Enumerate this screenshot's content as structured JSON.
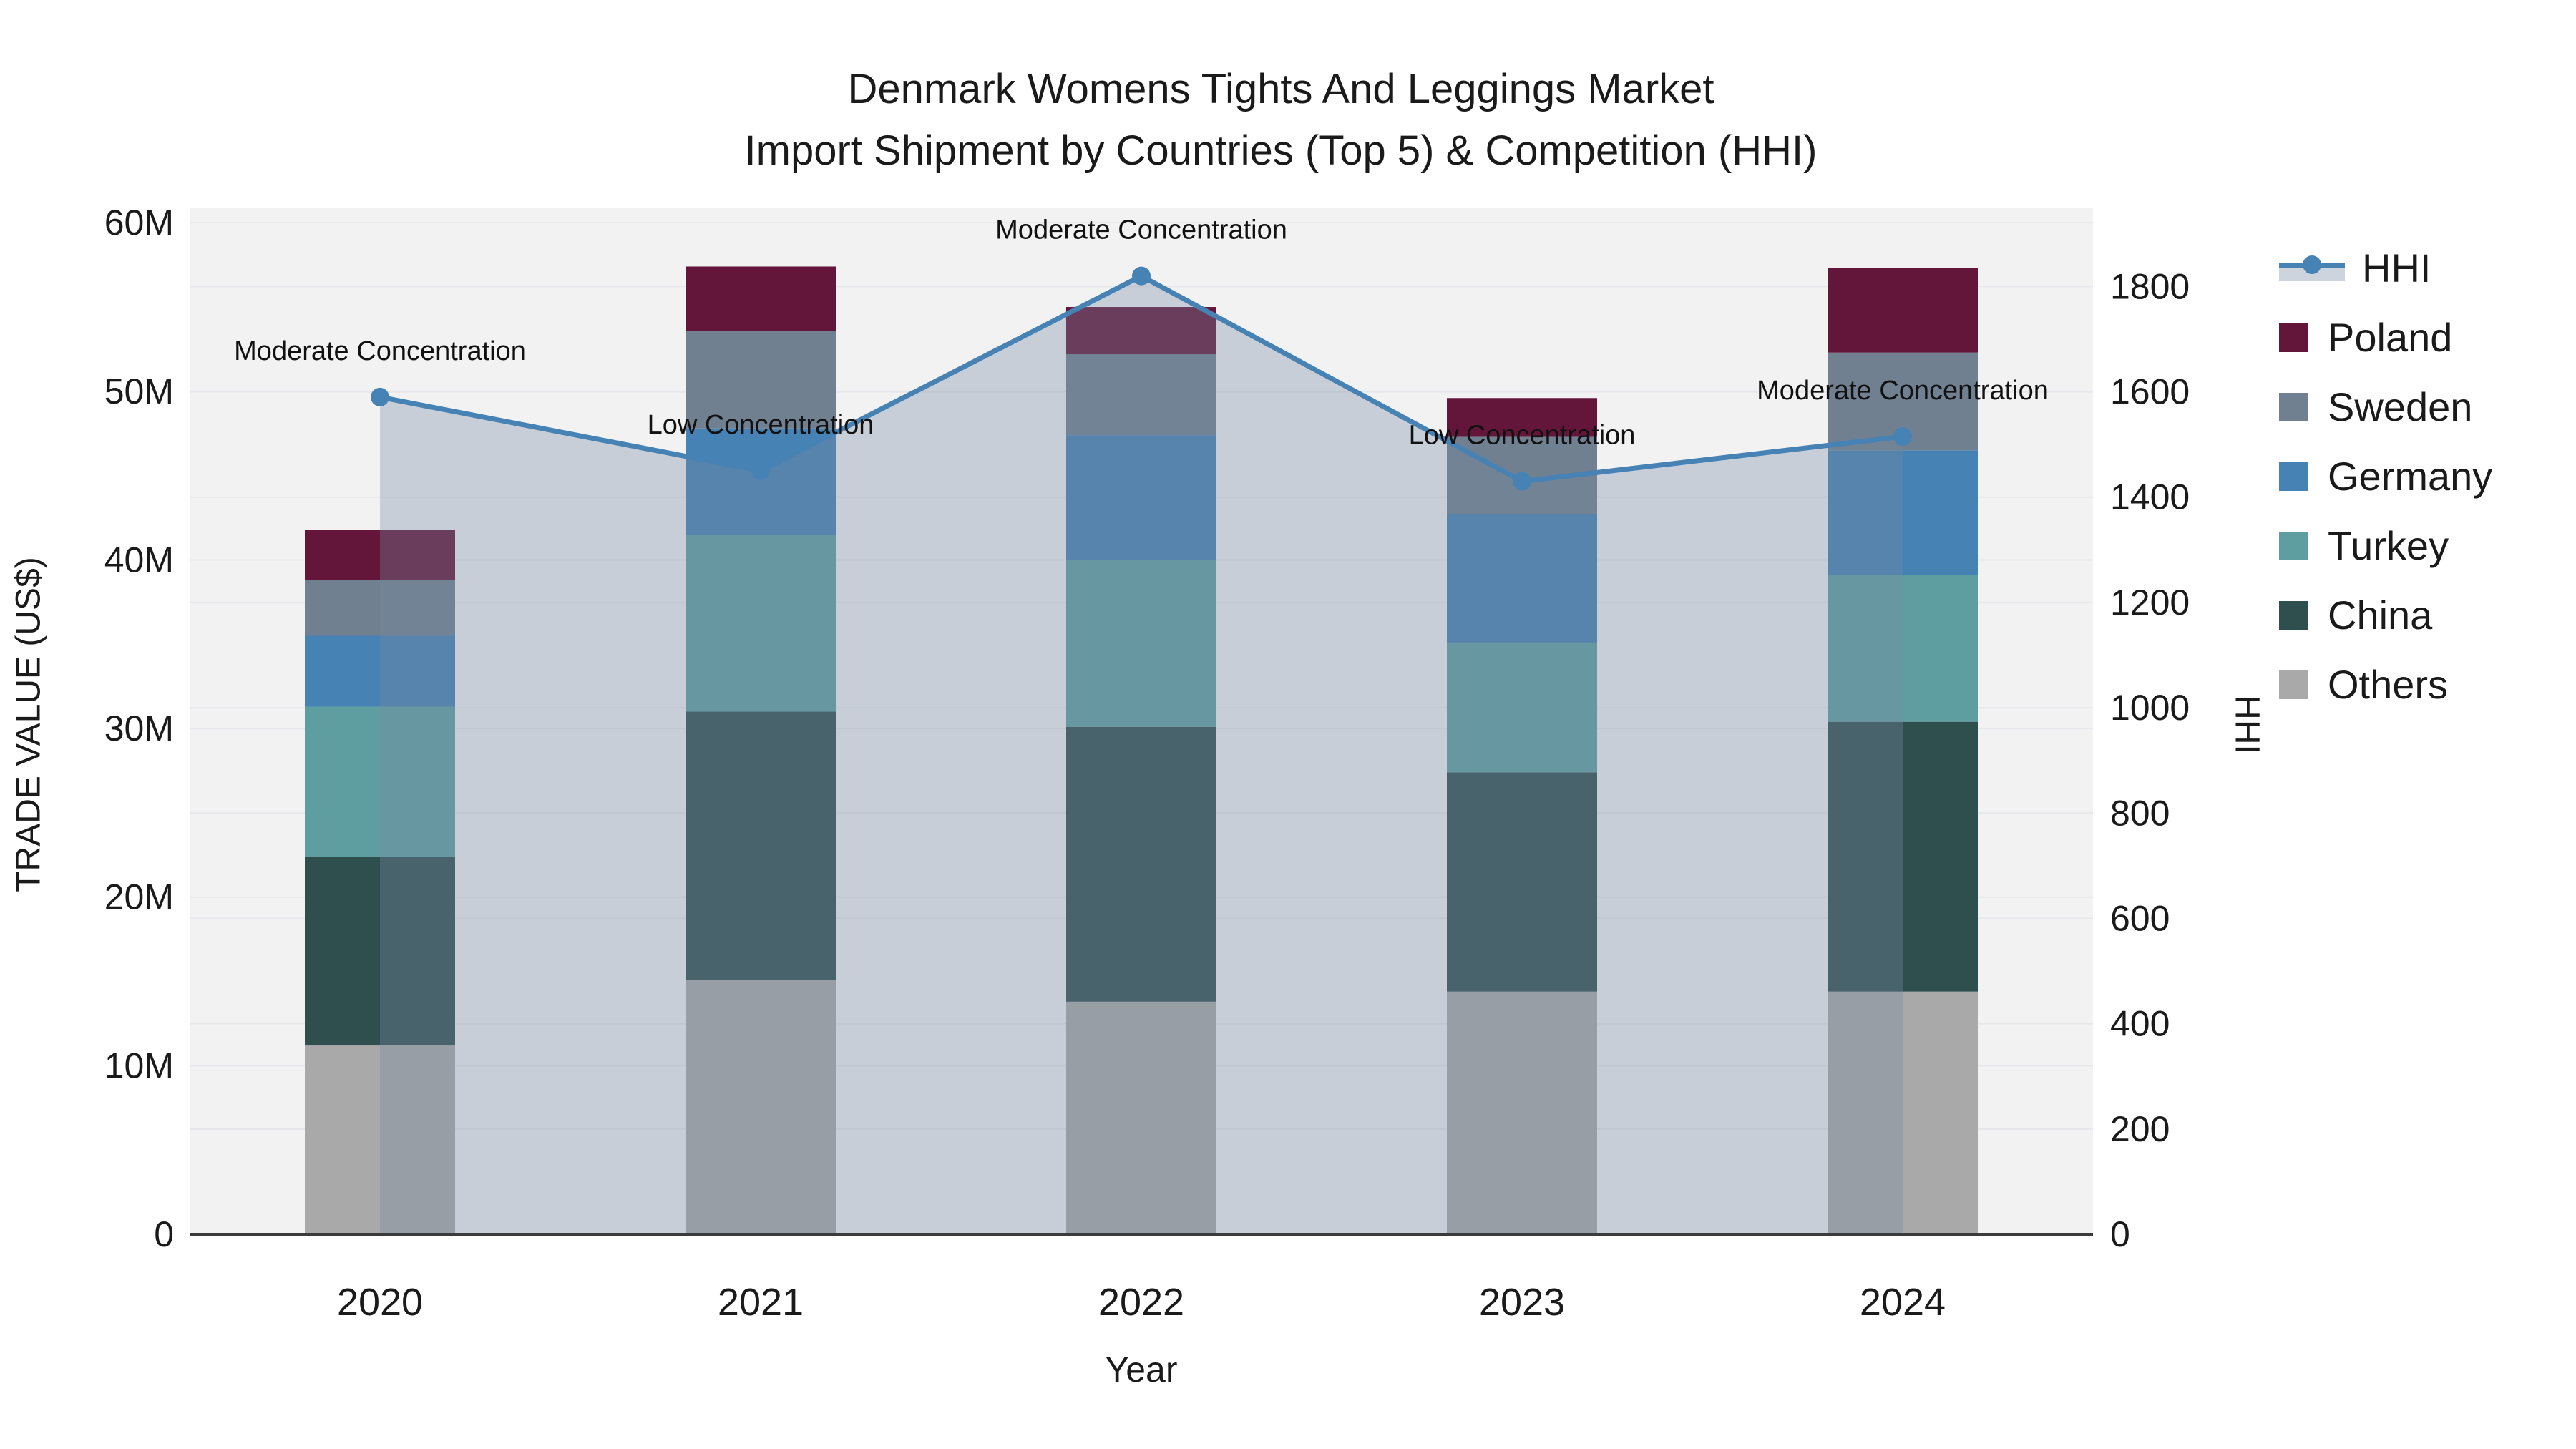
{
  "title": {
    "line1": "Denmark Womens Tights And Leggings Market",
    "line2": "Import Shipment by Countries (Top 5) & Competition (HHI)"
  },
  "chart_data": {
    "type": "bar+line",
    "categories": [
      "2020",
      "2021",
      "2022",
      "2023",
      "2024"
    ],
    "xlabel": "Year",
    "ylabel_left": "TRADE VALUE (US$)",
    "ylabel_right": "HHI",
    "left_axis": {
      "tick_labels": [
        "0",
        "10M",
        "20M",
        "30M",
        "40M",
        "50M",
        "60M"
      ],
      "tick_values_millions": [
        0,
        10,
        20,
        30,
        40,
        50,
        60
      ],
      "range_millions": [
        0,
        60.9
      ],
      "grid": true
    },
    "right_axis": {
      "tick_labels": [
        "0",
        "200",
        "400",
        "600",
        "800",
        "1000",
        "1200",
        "1400",
        "1600",
        "1800"
      ],
      "tick_values": [
        0,
        200,
        400,
        600,
        800,
        1000,
        1200,
        1400,
        1600,
        1800
      ],
      "range": [
        0,
        1950
      ],
      "grid": true
    },
    "series": [
      {
        "name": "Others",
        "color": "#A9A9A9",
        "values_millions": [
          11.2,
          15.1,
          13.8,
          14.4,
          14.4
        ]
      },
      {
        "name": "China",
        "color": "#2F4F4F",
        "values_millions": [
          11.2,
          15.9,
          16.3,
          13.0,
          16.0
        ]
      },
      {
        "name": "Turkey",
        "color": "#5F9EA0",
        "values_millions": [
          8.9,
          10.5,
          9.9,
          7.7,
          8.7
        ]
      },
      {
        "name": "Germany",
        "color": "#4682B4",
        "values_millions": [
          4.2,
          6.3,
          7.4,
          7.6,
          7.4
        ]
      },
      {
        "name": "Sweden",
        "color": "#708090",
        "values_millions": [
          3.3,
          5.8,
          4.8,
          4.6,
          5.8
        ]
      },
      {
        "name": "Poland",
        "color": "#64163A",
        "values_millions": [
          3.0,
          3.8,
          2.8,
          2.3,
          5.0
        ]
      }
    ],
    "bar_totals_millions": [
      41.8,
      57.4,
      55.0,
      49.6,
      57.3
    ],
    "hhi": {
      "name": "HHI",
      "values": [
        1590,
        1450,
        1820,
        1430,
        1515
      ],
      "line_color": "#4682B4",
      "area_fill": "rgba(120,138,162,0.34)"
    },
    "annotations": [
      {
        "year": "2020",
        "text": "Moderate Concentration"
      },
      {
        "year": "2021",
        "text": "Low Concentration"
      },
      {
        "year": "2022",
        "text": "Moderate Concentration"
      },
      {
        "year": "2023",
        "text": "Low Concentration"
      },
      {
        "year": "2024",
        "text": "Moderate Concentration"
      }
    ],
    "legend_order": [
      "HHI",
      "Poland",
      "Sweden",
      "Germany",
      "Turkey",
      "China",
      "Others"
    ],
    "colors": {
      "plot_background": "#f2f2f3",
      "grid_line": "#e5e7ea",
      "axis_line": "#3b3b3b",
      "text": "#1a1a1a"
    }
  }
}
